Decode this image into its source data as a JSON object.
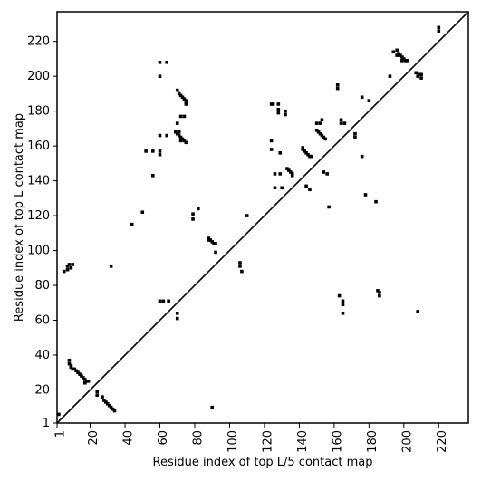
{
  "chart_data": {
    "type": "scatter",
    "xlabel": "Residue index of top L/5 contact map",
    "ylabel": "Residue index of top L contact map",
    "xlim": [
      1,
      237
    ],
    "ylim": [
      1,
      237
    ],
    "xticks": [
      1,
      20,
      40,
      60,
      80,
      100,
      120,
      140,
      160,
      180,
      200,
      220
    ],
    "yticks": [
      1,
      20,
      40,
      60,
      80,
      100,
      120,
      140,
      160,
      180,
      200,
      220
    ],
    "series": [
      {
        "color": "#000000",
        "x": [
          60,
          64,
          60,
          52,
          56,
          56,
          60,
          60,
          60,
          64,
          50,
          44,
          70,
          71,
          72,
          73,
          74,
          75,
          75,
          75,
          72,
          74,
          70,
          69,
          70,
          71,
          72,
          73,
          74,
          75,
          71,
          72,
          79,
          79,
          82,
          92,
          110,
          124,
          125,
          128,
          128,
          128,
          132,
          132,
          124,
          124,
          126,
          129,
          129,
          126,
          130,
          133,
          134,
          135,
          136,
          136,
          142,
          142,
          143,
          144,
          145,
          146,
          147,
          144,
          146,
          150,
          151,
          152,
          153,
          154,
          155,
          152,
          153,
          150,
          154,
          156,
          157,
          162,
          162,
          164,
          164,
          166,
          172,
          172,
          176,
          176,
          180,
          178,
          184,
          192,
          194,
          196,
          196,
          197,
          198,
          199,
          200,
          201,
          199,
          202,
          207,
          208,
          209,
          210,
          210,
          220,
          220
        ],
        "y": [
          208,
          208,
          200,
          157,
          157,
          143,
          157,
          155,
          166,
          166,
          122,
          115,
          192,
          190,
          189,
          188,
          187,
          186,
          185,
          184,
          177,
          177,
          173,
          168,
          167,
          166,
          165,
          164,
          163,
          162,
          168,
          163,
          121,
          118,
          124,
          99,
          120,
          184,
          184,
          184,
          181,
          179,
          178,
          180,
          163,
          158,
          144,
          144,
          156,
          136,
          136,
          147,
          146,
          145,
          144,
          143,
          159,
          158,
          157,
          156,
          155,
          154,
          154,
          137,
          135,
          169,
          168,
          167,
          166,
          165,
          164,
          173,
          175,
          173,
          145,
          144,
          125,
          193,
          195,
          175,
          173,
          173,
          167,
          165,
          154,
          188,
          186,
          132,
          128,
          200,
          214,
          215,
          212,
          213,
          212,
          211,
          210,
          209,
          209,
          209,
          202,
          200,
          201,
          199,
          201,
          228,
          226
        ]
      },
      {
        "color": "#000000",
        "x": [
          2,
          5,
          7,
          7,
          8,
          10,
          9,
          8,
          8,
          9,
          9,
          10,
          11,
          12,
          13,
          14,
          15,
          16,
          17,
          17,
          18,
          19,
          24,
          24,
          27,
          28,
          29,
          30,
          31,
          32,
          33,
          34,
          32,
          60,
          62,
          65,
          70,
          70,
          88,
          89,
          90,
          91,
          92,
          88,
          90,
          106,
          106,
          107,
          163,
          165,
          165,
          165,
          185,
          186,
          186,
          208
        ],
        "y": [
          6,
          88,
          89,
          91,
          92,
          92,
          90,
          37,
          35,
          34,
          33,
          32,
          32,
          31,
          30,
          29,
          28,
          27,
          26,
          24,
          25,
          25,
          19,
          17,
          16,
          14,
          13,
          12,
          11,
          10,
          9,
          8,
          91,
          71,
          71,
          71,
          64,
          61,
          107,
          106,
          105,
          104,
          104,
          106,
          10,
          93,
          91,
          88,
          74,
          71,
          69,
          64,
          77,
          76,
          74,
          65
        ]
      }
    ]
  }
}
